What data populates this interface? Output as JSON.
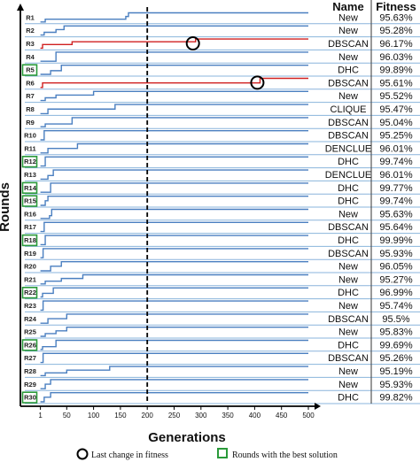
{
  "chart_data": {
    "type": "line",
    "xlabel": "Generations",
    "ylabel": "Rounds",
    "x_ticks": [
      1,
      50,
      100,
      150,
      200,
      250,
      300,
      350,
      400,
      450,
      500
    ],
    "xlim": [
      0,
      500
    ],
    "column_headers": {
      "name": "Name",
      "fitness": "Fitness"
    },
    "vertical_marker": {
      "x": 200,
      "style": "dashed"
    },
    "colors": {
      "normal": "#4a7fc0",
      "highlight": "#d02020",
      "best_box": "#2a9a3a",
      "circle": "#000000"
    },
    "rows": [
      {
        "round": "R1",
        "name": "New",
        "fitness": "95.63%",
        "best": false,
        "highlight": false,
        "steps": [
          [
            1,
            0
          ],
          [
            10,
            0.3
          ],
          [
            160,
            0.6
          ],
          [
            165,
            1
          ]
        ]
      },
      {
        "round": "R2",
        "name": "New",
        "fitness": "95.28%",
        "best": false,
        "highlight": false,
        "steps": [
          [
            1,
            0
          ],
          [
            8,
            0.3
          ],
          [
            30,
            0.6
          ],
          [
            45,
            1
          ]
        ]
      },
      {
        "round": "R3",
        "name": "DBSCAN",
        "fitness": "96.17%",
        "best": false,
        "highlight": true,
        "steps": [
          [
            1,
            0
          ],
          [
            5,
            0.4
          ],
          [
            60,
            0.7
          ],
          [
            290,
            1
          ]
        ],
        "last_change": 285
      },
      {
        "round": "R4",
        "name": "New",
        "fitness": "96.03%",
        "best": false,
        "highlight": false,
        "steps": [
          [
            1,
            0
          ],
          [
            30,
            1
          ]
        ]
      },
      {
        "round": "R5",
        "name": "DHC",
        "fitness": "99.89%",
        "best": true,
        "highlight": false,
        "steps": [
          [
            1,
            0
          ],
          [
            20,
            0.4
          ],
          [
            40,
            1
          ]
        ]
      },
      {
        "round": "R6",
        "name": "DBSCAN",
        "fitness": "95.61%",
        "best": false,
        "highlight": true,
        "steps": [
          [
            1,
            0
          ],
          [
            5,
            0.5
          ],
          [
            410,
            1
          ]
        ],
        "last_change": 405
      },
      {
        "round": "R7",
        "name": "New",
        "fitness": "95.52%",
        "best": false,
        "highlight": false,
        "steps": [
          [
            1,
            0
          ],
          [
            10,
            0.3
          ],
          [
            30,
            0.6
          ],
          [
            100,
            1
          ]
        ]
      },
      {
        "round": "R8",
        "name": "CLIQUE",
        "fitness": "95.47%",
        "best": false,
        "highlight": false,
        "steps": [
          [
            1,
            0
          ],
          [
            15,
            0.5
          ],
          [
            140,
            1
          ]
        ]
      },
      {
        "round": "R9",
        "name": "DBSCAN",
        "fitness": "95.04%",
        "best": false,
        "highlight": false,
        "steps": [
          [
            1,
            0
          ],
          [
            10,
            0.3
          ],
          [
            60,
            1
          ]
        ]
      },
      {
        "round": "R10",
        "name": "DBSCAN",
        "fitness": "95.25%",
        "best": false,
        "highlight": false,
        "steps": [
          [
            1,
            0
          ],
          [
            8,
            1
          ]
        ]
      },
      {
        "round": "R11",
        "name": "DENCLUE",
        "fitness": "96.01%",
        "best": false,
        "highlight": false,
        "steps": [
          [
            1,
            0
          ],
          [
            15,
            0.5
          ],
          [
            70,
            1
          ]
        ]
      },
      {
        "round": "R12",
        "name": "DHC",
        "fitness": "99.74%",
        "best": true,
        "highlight": false,
        "steps": [
          [
            1,
            0
          ],
          [
            10,
            1
          ]
        ]
      },
      {
        "round": "R13",
        "name": "DENCLUE",
        "fitness": "96.01%",
        "best": false,
        "highlight": false,
        "steps": [
          [
            1,
            0
          ],
          [
            15,
            0.4
          ],
          [
            25,
            1
          ]
        ]
      },
      {
        "round": "R14",
        "name": "DHC",
        "fitness": "99.77%",
        "best": true,
        "highlight": false,
        "steps": [
          [
            1,
            0
          ],
          [
            20,
            1
          ]
        ]
      },
      {
        "round": "R15",
        "name": "DHC",
        "fitness": "99.74%",
        "best": true,
        "highlight": false,
        "steps": [
          [
            1,
            0
          ],
          [
            10,
            0.5
          ],
          [
            15,
            1
          ]
        ]
      },
      {
        "round": "R16",
        "name": "New",
        "fitness": "95.63%",
        "best": false,
        "highlight": false,
        "steps": [
          [
            1,
            0
          ],
          [
            18,
            0.3
          ],
          [
            22,
            1
          ]
        ]
      },
      {
        "round": "R17",
        "name": "DBSCAN",
        "fitness": "95.64%",
        "best": false,
        "highlight": false,
        "steps": [
          [
            1,
            0
          ],
          [
            8,
            1
          ]
        ]
      },
      {
        "round": "R18",
        "name": "DHC",
        "fitness": "99.99%",
        "best": true,
        "highlight": false,
        "steps": [
          [
            1,
            0
          ],
          [
            10,
            1
          ]
        ]
      },
      {
        "round": "R19",
        "name": "DBSCAN",
        "fitness": "95.93%",
        "best": false,
        "highlight": false,
        "steps": [
          [
            1,
            0
          ],
          [
            6,
            1
          ]
        ]
      },
      {
        "round": "R20",
        "name": "New",
        "fitness": "96.05%",
        "best": false,
        "highlight": false,
        "steps": [
          [
            1,
            0
          ],
          [
            20,
            0.5
          ],
          [
            40,
            1
          ]
        ]
      },
      {
        "round": "R21",
        "name": "New",
        "fitness": "95.27%",
        "best": false,
        "highlight": false,
        "steps": [
          [
            1,
            0
          ],
          [
            10,
            0.3
          ],
          [
            40,
            0.6
          ],
          [
            80,
            1
          ]
        ]
      },
      {
        "round": "R22",
        "name": "DHC",
        "fitness": "96.99%",
        "best": true,
        "highlight": false,
        "steps": [
          [
            1,
            0
          ],
          [
            5,
            0.4
          ],
          [
            25,
            1
          ]
        ]
      },
      {
        "round": "R23",
        "name": "New",
        "fitness": "95.74%",
        "best": false,
        "highlight": false,
        "steps": [
          [
            1,
            0
          ],
          [
            6,
            1
          ]
        ]
      },
      {
        "round": "R24",
        "name": "DBSCAN",
        "fitness": "95.5%",
        "best": false,
        "highlight": false,
        "steps": [
          [
            1,
            0
          ],
          [
            15,
            0.5
          ],
          [
            50,
            1
          ]
        ]
      },
      {
        "round": "R25",
        "name": "New",
        "fitness": "95.83%",
        "best": false,
        "highlight": false,
        "steps": [
          [
            1,
            0
          ],
          [
            10,
            0.3
          ],
          [
            30,
            0.6
          ],
          [
            50,
            1
          ]
        ]
      },
      {
        "round": "R26",
        "name": "DHC",
        "fitness": "99.69%",
        "best": true,
        "highlight": false,
        "steps": [
          [
            1,
            0
          ],
          [
            5,
            0.3
          ],
          [
            30,
            1
          ]
        ]
      },
      {
        "round": "R27",
        "name": "DBSCAN",
        "fitness": "95.26%",
        "best": false,
        "highlight": false,
        "steps": [
          [
            1,
            0
          ],
          [
            6,
            1
          ]
        ]
      },
      {
        "round": "R28",
        "name": "New",
        "fitness": "95.19%",
        "best": false,
        "highlight": false,
        "steps": [
          [
            1,
            0
          ],
          [
            10,
            0.3
          ],
          [
            50,
            0.6
          ],
          [
            130,
            1
          ]
        ]
      },
      {
        "round": "R29",
        "name": "New",
        "fitness": "95.93%",
        "best": false,
        "highlight": false,
        "steps": [
          [
            1,
            0
          ],
          [
            10,
            0.5
          ],
          [
            20,
            1
          ]
        ]
      },
      {
        "round": "R30",
        "name": "DHC",
        "fitness": "99.82%",
        "best": true,
        "highlight": false,
        "steps": [
          [
            1,
            0
          ],
          [
            8,
            0.5
          ],
          [
            20,
            1
          ]
        ]
      }
    ],
    "legend": [
      {
        "symbol": "circle",
        "label": "Last change in fitness"
      },
      {
        "symbol": "square",
        "label": "Rounds with the best solution"
      }
    ]
  }
}
